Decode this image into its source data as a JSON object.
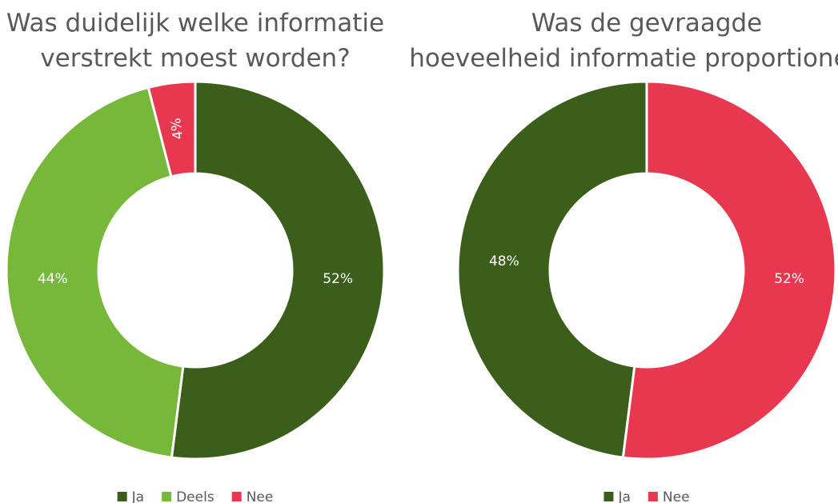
{
  "chart_data": [
    {
      "type": "doughnut",
      "title": "Was duidelijk welke informatie verstrekt moest worden?",
      "categories": [
        "Ja",
        "Deels",
        "Nee"
      ],
      "values": [
        52,
        44,
        4
      ],
      "value_labels": [
        "52%",
        "44%",
        "4%"
      ],
      "colors": [
        "#3b5e1b",
        "#77b83a",
        "#e8384f"
      ],
      "direction": "clockwise",
      "legend": "bottom"
    },
    {
      "type": "doughnut",
      "title": "Was de gevraagde hoeveelheid informatie proportioneel?",
      "categories": [
        "Ja",
        "Nee"
      ],
      "values": [
        48,
        52
      ],
      "value_labels": [
        "48%",
        "52%"
      ],
      "colors": [
        "#3b5e1b",
        "#e8384f"
      ],
      "direction": "counterclockwise",
      "legend": "bottom"
    }
  ]
}
